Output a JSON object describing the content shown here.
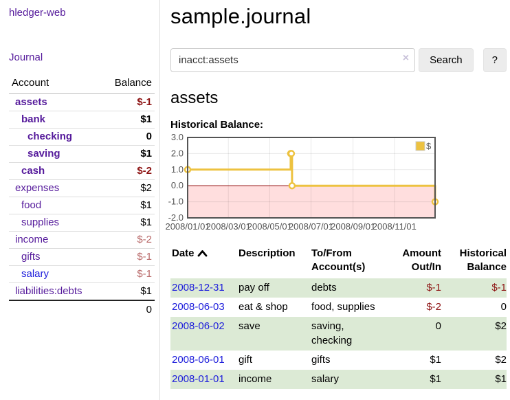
{
  "app": {
    "title": "hledger-web",
    "journal_link": "Journal"
  },
  "sidebar": {
    "account_header": "Account",
    "balance_header": "Balance",
    "accounts": [
      {
        "name": "assets",
        "balance": "$-1",
        "depth": 1,
        "bold": true,
        "balance_style": "neg-strong"
      },
      {
        "name": "bank",
        "balance": "$1",
        "depth": 2,
        "bold": true,
        "balance_style": "pos"
      },
      {
        "name": "checking",
        "balance": "0",
        "depth": 3,
        "bold": true,
        "balance_style": "pos"
      },
      {
        "name": "saving",
        "balance": "$1",
        "depth": 3,
        "bold": true,
        "balance_style": "pos"
      },
      {
        "name": "cash",
        "balance": "$-2",
        "depth": 2,
        "bold": true,
        "balance_style": "neg-strong"
      },
      {
        "name": "expenses",
        "balance": "$2",
        "depth": 1,
        "bold": false,
        "balance_style": "pos"
      },
      {
        "name": "food",
        "balance": "$1",
        "depth": 2,
        "bold": false,
        "balance_style": "pos"
      },
      {
        "name": "supplies",
        "balance": "$1",
        "depth": 2,
        "bold": false,
        "balance_style": "pos"
      },
      {
        "name": "income",
        "balance": "$-2",
        "depth": 1,
        "bold": false,
        "balance_style": "neg-muted"
      },
      {
        "name": "gifts",
        "balance": "$-1",
        "depth": 2,
        "bold": false,
        "balance_style": "neg-muted"
      },
      {
        "name": "salary",
        "balance": "$-1",
        "depth": 2,
        "bold": false,
        "balance_style": "neg-muted",
        "link_style": "blue"
      },
      {
        "name": "liabilities:debts",
        "balance": "$1",
        "depth": 1,
        "bold": false,
        "balance_style": "pos"
      }
    ],
    "total": "0"
  },
  "main": {
    "title": "sample.journal",
    "search": {
      "value": "inacct:assets",
      "clear_icon": "×",
      "button_label": "Search",
      "help_label": "?"
    },
    "account_heading": "assets",
    "chart_label": "Historical Balance:"
  },
  "chart_data": {
    "type": "line",
    "step": true,
    "title": "Historical Balance:",
    "series": [
      {
        "name": "$",
        "color": "#edc240",
        "points": [
          [
            "2008-01-01",
            1
          ],
          [
            "2008-06-01",
            2
          ],
          [
            "2008-06-02",
            2
          ],
          [
            "2008-06-03",
            0
          ],
          [
            "2008-12-31",
            -1
          ]
        ]
      }
    ],
    "xlim": [
      "2008-01-01",
      "2008-12-31"
    ],
    "ylim": [
      -2,
      3
    ],
    "yticks": [
      3.0,
      2.0,
      1.0,
      0.0,
      -1.0,
      -2.0
    ],
    "xticks": [
      {
        "date": "2008-01-01",
        "label": "2008/01/01"
      },
      {
        "date": "2008-03-01",
        "label": "2008/03/01"
      },
      {
        "date": "2008-05-01",
        "label": "2008/05/01"
      },
      {
        "date": "2008-07-01",
        "label": "2008/07/01"
      },
      {
        "date": "2008-09-01",
        "label": "2008/09/01"
      },
      {
        "date": "2008-11-01",
        "label": "2008/11/01"
      }
    ],
    "legend": {
      "label": "$",
      "position": "top-right"
    },
    "grid": true,
    "zero_line_color": "#8b0000",
    "negative_region_color": "rgba(255,0,0,0.13)",
    "border_color": "#545454"
  },
  "register": {
    "headers": {
      "date": "Date",
      "description": "Description",
      "accounts": "To/From Account(s)",
      "amount": "Amount Out/In",
      "balance": "Historical Balance"
    },
    "sort": {
      "column": "date",
      "direction": "ascending"
    },
    "rows": [
      {
        "date": "2008-12-31",
        "description": "pay off",
        "accounts": "debts",
        "amount": "$-1",
        "amount_neg": true,
        "balance": "$-1",
        "balance_neg": true
      },
      {
        "date": "2008-06-03",
        "description": "eat & shop",
        "accounts": "food, supplies",
        "amount": "$-2",
        "amount_neg": true,
        "balance": "0",
        "balance_neg": false
      },
      {
        "date": "2008-06-02",
        "description": "save",
        "accounts": "saving, checking",
        "amount": "0",
        "amount_neg": false,
        "balance": "$2",
        "balance_neg": false
      },
      {
        "date": "2008-06-01",
        "description": "gift",
        "accounts": "gifts",
        "amount": "$1",
        "amount_neg": false,
        "balance": "$2",
        "balance_neg": false
      },
      {
        "date": "2008-01-01",
        "description": "income",
        "accounts": "salary",
        "amount": "$1",
        "amount_neg": false,
        "balance": "$1",
        "balance_neg": false
      }
    ]
  }
}
